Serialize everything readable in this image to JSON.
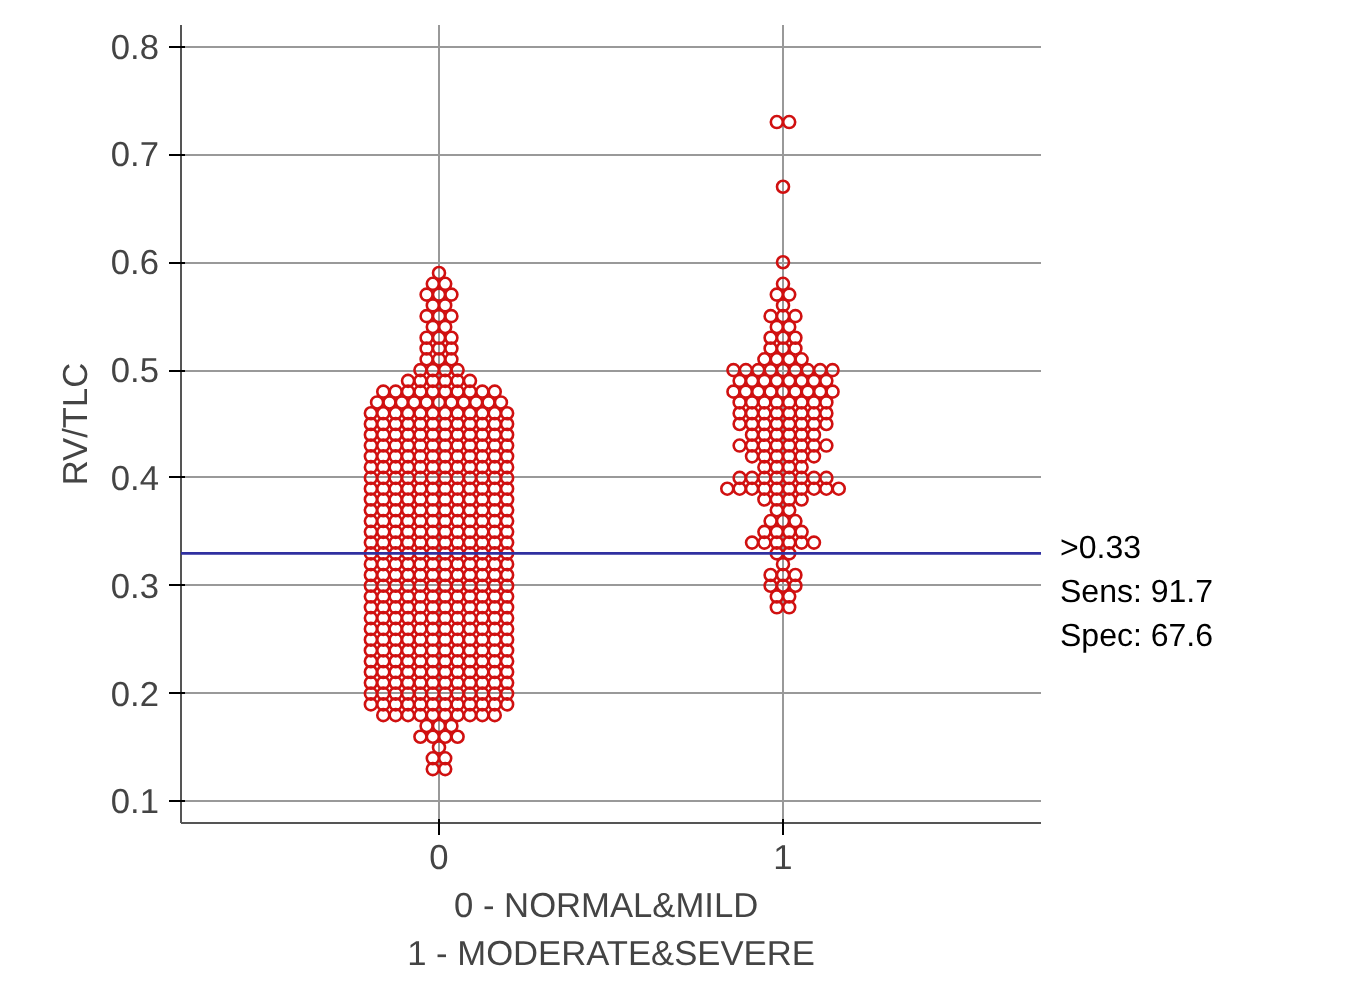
{
  "chart_data": {
    "type": "scatter",
    "xlabel": "0 -  NORMAL&MILD\n1 - MODERATE&SEVERE",
    "ylabel": "RV/TLC",
    "xlim": [
      -0.75,
      1.75
    ],
    "xticks": [
      0,
      1
    ],
    "ylim": [
      0.08,
      0.82
    ],
    "yticks": [
      0.1,
      0.2,
      0.3,
      0.4,
      0.5,
      0.6,
      0.7,
      0.8
    ],
    "grid": true,
    "marker": "circle",
    "series": [
      {
        "color": "#d01010",
        "x": [
          -0.018,
          0.018,
          -0.018,
          0.018,
          0,
          -0.054,
          -0.018,
          0.018,
          0.054,
          -0.036,
          0,
          0.036,
          -0.162,
          -0.126,
          -0.09,
          -0.054,
          -0.018,
          0.018,
          0.054,
          0.09,
          0.126,
          0.162,
          -0.198,
          -0.162,
          -0.126,
          -0.09,
          -0.054,
          -0.018,
          0.018,
          0.054,
          0.09,
          0.126,
          0.162,
          0.198,
          -0.198,
          -0.162,
          -0.126,
          -0.09,
          -0.054,
          -0.018,
          0.018,
          0.054,
          0.09,
          0.126,
          0.162,
          0.198,
          -0.198,
          -0.162,
          -0.126,
          -0.09,
          -0.054,
          -0.018,
          0.018,
          0.054,
          0.09,
          0.126,
          0.162,
          0.198,
          -0.198,
          -0.162,
          -0.126,
          -0.09,
          -0.054,
          -0.018,
          0.018,
          0.054,
          0.09,
          0.126,
          0.162,
          0.198,
          -0.198,
          -0.162,
          -0.126,
          -0.09,
          -0.054,
          -0.018,
          0.018,
          0.054,
          0.09,
          0.126,
          0.162,
          0.198,
          -0.198,
          -0.162,
          -0.126,
          -0.09,
          -0.054,
          -0.018,
          0.018,
          0.054,
          0.09,
          0.126,
          0.162,
          0.198,
          -0.198,
          -0.162,
          -0.126,
          -0.09,
          -0.054,
          -0.018,
          0.018,
          0.054,
          0.09,
          0.126,
          0.162,
          0.198,
          -0.198,
          -0.162,
          -0.126,
          -0.09,
          -0.054,
          -0.018,
          0.018,
          0.054,
          0.09,
          0.126,
          0.162,
          0.198,
          -0.198,
          -0.162,
          -0.126,
          -0.09,
          -0.054,
          -0.018,
          0.018,
          0.054,
          0.09,
          0.126,
          0.162,
          0.198,
          -0.198,
          -0.162,
          -0.126,
          -0.09,
          -0.054,
          -0.018,
          0.018,
          0.054,
          0.09,
          0.126,
          0.162,
          0.198,
          -0.198,
          -0.162,
          -0.126,
          -0.09,
          -0.054,
          -0.018,
          0.018,
          0.054,
          0.09,
          0.126,
          0.162,
          0.198,
          -0.198,
          -0.162,
          -0.126,
          -0.09,
          -0.054,
          -0.018,
          0.018,
          0.054,
          0.09,
          0.126,
          0.162,
          0.198,
          -0.198,
          -0.162,
          -0.126,
          -0.09,
          -0.054,
          -0.018,
          0.018,
          0.054,
          0.09,
          0.126,
          0.162,
          0.198,
          -0.198,
          -0.162,
          -0.126,
          -0.09,
          -0.054,
          -0.018,
          0.018,
          0.054,
          0.09,
          0.126,
          0.162,
          0.198,
          -0.198,
          -0.162,
          -0.126,
          -0.09,
          -0.054,
          -0.018,
          0.018,
          0.054,
          0.09,
          0.126,
          0.162,
          0.198,
          -0.198,
          -0.162,
          -0.126,
          -0.09,
          -0.054,
          -0.018,
          0.018,
          0.054,
          0.09,
          0.126,
          0.162,
          0.198,
          -0.198,
          -0.162,
          -0.126,
          -0.09,
          -0.054,
          -0.018,
          0.018,
          0.054,
          0.09,
          0.126,
          0.162,
          0.198,
          -0.198,
          -0.162,
          -0.126,
          -0.09,
          -0.054,
          -0.018,
          0.018,
          0.054,
          0.09,
          0.126,
          0.162,
          0.198,
          -0.198,
          -0.162,
          -0.126,
          -0.09,
          -0.054,
          -0.018,
          0.018,
          0.054,
          0.09,
          0.126,
          0.162,
          0.198,
          -0.198,
          -0.162,
          -0.126,
          -0.09,
          -0.054,
          -0.018,
          0.018,
          0.054,
          0.09,
          0.126,
          0.162,
          0.198,
          -0.198,
          -0.162,
          -0.126,
          -0.09,
          -0.054,
          -0.018,
          0.018,
          0.054,
          0.09,
          0.126,
          0.162,
          0.198,
          -0.198,
          -0.162,
          -0.126,
          -0.09,
          -0.054,
          -0.018,
          0.018,
          0.054,
          0.09,
          0.126,
          0.162,
          0.198,
          -0.198,
          -0.162,
          -0.126,
          -0.09,
          -0.054,
          -0.018,
          0.018,
          0.054,
          0.09,
          0.126,
          0.162,
          0.198,
          -0.198,
          -0.162,
          -0.126,
          -0.09,
          -0.054,
          -0.018,
          0.018,
          0.054,
          0.09,
          0.126,
          0.162,
          0.198,
          -0.198,
          -0.162,
          -0.126,
          -0.09,
          -0.054,
          -0.018,
          0.018,
          0.054,
          0.09,
          0.126,
          0.162,
          0.198,
          -0.198,
          -0.162,
          -0.126,
          -0.09,
          -0.054,
          -0.018,
          0.018,
          0.054,
          0.09,
          0.126,
          0.162,
          0.198,
          -0.198,
          -0.162,
          -0.126,
          -0.09,
          -0.054,
          -0.018,
          0.018,
          0.054,
          0.09,
          0.126,
          0.162,
          0.198,
          -0.198,
          -0.162,
          -0.126,
          -0.09,
          -0.054,
          -0.018,
          0.018,
          0.054,
          0.09,
          0.126,
          0.162,
          0.198,
          -0.18,
          -0.144,
          -0.108,
          -0.072,
          -0.036,
          0,
          0.036,
          0.072,
          0.108,
          0.144,
          0.18,
          -0.162,
          -0.126,
          -0.09,
          -0.054,
          -0.018,
          0.018,
          0.054,
          0.09,
          0.126,
          0.162,
          -0.09,
          -0.054,
          -0.018,
          0.018,
          0.054,
          0.09,
          -0.054,
          -0.018,
          0.018,
          0.054,
          -0.036,
          0,
          0.036,
          -0.036,
          0,
          0.036,
          -0.036,
          0,
          0.036,
          -0.018,
          0.018,
          -0.036,
          0,
          0.036,
          -0.018,
          0.018,
          -0.036,
          0,
          0.036,
          -0.018,
          0.018,
          0
        ],
        "values": [
          0.13,
          0.13,
          0.14,
          0.14,
          0.15,
          0.16,
          0.16,
          0.16,
          0.16,
          0.17,
          0.17,
          0.17,
          0.18,
          0.18,
          0.18,
          0.18,
          0.18,
          0.18,
          0.18,
          0.18,
          0.18,
          0.18,
          0.19,
          0.19,
          0.19,
          0.19,
          0.19,
          0.19,
          0.19,
          0.19,
          0.19,
          0.19,
          0.19,
          0.19,
          0.2,
          0.2,
          0.2,
          0.2,
          0.2,
          0.2,
          0.2,
          0.2,
          0.2,
          0.2,
          0.2,
          0.2,
          0.21,
          0.21,
          0.21,
          0.21,
          0.21,
          0.21,
          0.21,
          0.21,
          0.21,
          0.21,
          0.21,
          0.21,
          0.22,
          0.22,
          0.22,
          0.22,
          0.22,
          0.22,
          0.22,
          0.22,
          0.22,
          0.22,
          0.22,
          0.22,
          0.23,
          0.23,
          0.23,
          0.23,
          0.23,
          0.23,
          0.23,
          0.23,
          0.23,
          0.23,
          0.23,
          0.23,
          0.24,
          0.24,
          0.24,
          0.24,
          0.24,
          0.24,
          0.24,
          0.24,
          0.24,
          0.24,
          0.24,
          0.24,
          0.25,
          0.25,
          0.25,
          0.25,
          0.25,
          0.25,
          0.25,
          0.25,
          0.25,
          0.25,
          0.25,
          0.25,
          0.26,
          0.26,
          0.26,
          0.26,
          0.26,
          0.26,
          0.26,
          0.26,
          0.26,
          0.26,
          0.26,
          0.26,
          0.27,
          0.27,
          0.27,
          0.27,
          0.27,
          0.27,
          0.27,
          0.27,
          0.27,
          0.27,
          0.27,
          0.27,
          0.28,
          0.28,
          0.28,
          0.28,
          0.28,
          0.28,
          0.28,
          0.28,
          0.28,
          0.28,
          0.28,
          0.28,
          0.29,
          0.29,
          0.29,
          0.29,
          0.29,
          0.29,
          0.29,
          0.29,
          0.29,
          0.29,
          0.29,
          0.29,
          0.3,
          0.3,
          0.3,
          0.3,
          0.3,
          0.3,
          0.3,
          0.3,
          0.3,
          0.3,
          0.3,
          0.3,
          0.31,
          0.31,
          0.31,
          0.31,
          0.31,
          0.31,
          0.31,
          0.31,
          0.31,
          0.31,
          0.31,
          0.31,
          0.32,
          0.32,
          0.32,
          0.32,
          0.32,
          0.32,
          0.32,
          0.32,
          0.32,
          0.32,
          0.32,
          0.32,
          0.33,
          0.33,
          0.33,
          0.33,
          0.33,
          0.33,
          0.33,
          0.33,
          0.33,
          0.33,
          0.33,
          0.33,
          0.34,
          0.34,
          0.34,
          0.34,
          0.34,
          0.34,
          0.34,
          0.34,
          0.34,
          0.34,
          0.34,
          0.34,
          0.35,
          0.35,
          0.35,
          0.35,
          0.35,
          0.35,
          0.35,
          0.35,
          0.35,
          0.35,
          0.35,
          0.35,
          0.36,
          0.36,
          0.36,
          0.36,
          0.36,
          0.36,
          0.36,
          0.36,
          0.36,
          0.36,
          0.36,
          0.36,
          0.37,
          0.37,
          0.37,
          0.37,
          0.37,
          0.37,
          0.37,
          0.37,
          0.37,
          0.37,
          0.37,
          0.37,
          0.38,
          0.38,
          0.38,
          0.38,
          0.38,
          0.38,
          0.38,
          0.38,
          0.38,
          0.38,
          0.38,
          0.38,
          0.39,
          0.39,
          0.39,
          0.39,
          0.39,
          0.39,
          0.39,
          0.39,
          0.39,
          0.39,
          0.39,
          0.39,
          0.4,
          0.4,
          0.4,
          0.4,
          0.4,
          0.4,
          0.4,
          0.4,
          0.4,
          0.4,
          0.4,
          0.4,
          0.41,
          0.41,
          0.41,
          0.41,
          0.41,
          0.41,
          0.41,
          0.41,
          0.41,
          0.41,
          0.41,
          0.41,
          0.42,
          0.42,
          0.42,
          0.42,
          0.42,
          0.42,
          0.42,
          0.42,
          0.42,
          0.42,
          0.42,
          0.42,
          0.43,
          0.43,
          0.43,
          0.43,
          0.43,
          0.43,
          0.43,
          0.43,
          0.43,
          0.43,
          0.43,
          0.43,
          0.44,
          0.44,
          0.44,
          0.44,
          0.44,
          0.44,
          0.44,
          0.44,
          0.44,
          0.44,
          0.44,
          0.44,
          0.45,
          0.45,
          0.45,
          0.45,
          0.45,
          0.45,
          0.45,
          0.45,
          0.45,
          0.45,
          0.45,
          0.45,
          0.46,
          0.46,
          0.46,
          0.46,
          0.46,
          0.46,
          0.46,
          0.46,
          0.46,
          0.46,
          0.46,
          0.46,
          0.47,
          0.47,
          0.47,
          0.47,
          0.47,
          0.47,
          0.47,
          0.47,
          0.47,
          0.47,
          0.47,
          0.48,
          0.48,
          0.48,
          0.48,
          0.48,
          0.48,
          0.48,
          0.48,
          0.48,
          0.48,
          0.49,
          0.49,
          0.49,
          0.49,
          0.49,
          0.49,
          0.5,
          0.5,
          0.5,
          0.5,
          0.51,
          0.51,
          0.51,
          0.52,
          0.52,
          0.52,
          0.53,
          0.53,
          0.53,
          0.54,
          0.54,
          0.55,
          0.55,
          0.55,
          0.56,
          0.56,
          0.57,
          0.57,
          0.57,
          0.58,
          0.58,
          0.59
        ]
      },
      {
        "color": "#d01010",
        "x": [
          0.982,
          1.018,
          0.982,
          1.018,
          0.964,
          1,
          1.036,
          0.964,
          1,
          1.036,
          1,
          0.982,
          1.018,
          0.91,
          0.946,
          0.982,
          1.018,
          1.054,
          1.09,
          0.946,
          0.982,
          1.018,
          1.054,
          0.964,
          1,
          1.036,
          0.982,
          1.018,
          0.946,
          0.982,
          1.018,
          1.054,
          0.838,
          0.874,
          0.91,
          0.946,
          0.982,
          1.018,
          1.054,
          1.09,
          1.126,
          1.162,
          0.874,
          0.91,
          0.946,
          0.982,
          1.018,
          1.054,
          1.09,
          1.126,
          0.946,
          0.982,
          1.018,
          1.054,
          0.91,
          0.946,
          0.982,
          1.018,
          1.054,
          1.09,
          0.874,
          0.91,
          0.946,
          0.982,
          1.018,
          1.054,
          1.09,
          1.126,
          0.91,
          0.946,
          0.982,
          1.018,
          1.054,
          1.09,
          0.874,
          0.91,
          0.946,
          0.982,
          1.018,
          1.054,
          1.09,
          1.126,
          0.874,
          0.91,
          0.946,
          0.982,
          1.018,
          1.054,
          1.09,
          1.126,
          0.874,
          0.91,
          0.946,
          0.982,
          1.018,
          1.054,
          1.09,
          1.126,
          0.856,
          0.892,
          0.928,
          0.964,
          1,
          1.036,
          1.072,
          1.108,
          1.144,
          0.874,
          0.91,
          0.946,
          0.982,
          1.018,
          1.054,
          1.09,
          1.126,
          0.856,
          0.892,
          0.928,
          0.964,
          1,
          1.036,
          1.072,
          1.108,
          1.144,
          0.946,
          0.982,
          1.018,
          1.054,
          0.964,
          1,
          1.036,
          0.964,
          1,
          1.036,
          0.982,
          1.018,
          0.964,
          1,
          1.036,
          1,
          0.982,
          1.018,
          1,
          1,
          1,
          0.982,
          1.018
        ],
        "values": [
          0.28,
          0.28,
          0.29,
          0.29,
          0.3,
          0.3,
          0.3,
          0.31,
          0.31,
          0.31,
          0.32,
          0.33,
          0.33,
          0.34,
          0.34,
          0.34,
          0.34,
          0.34,
          0.34,
          0.35,
          0.35,
          0.35,
          0.35,
          0.36,
          0.36,
          0.36,
          0.37,
          0.37,
          0.38,
          0.38,
          0.38,
          0.38,
          0.39,
          0.39,
          0.39,
          0.39,
          0.39,
          0.39,
          0.39,
          0.39,
          0.39,
          0.39,
          0.4,
          0.4,
          0.4,
          0.4,
          0.4,
          0.4,
          0.4,
          0.4,
          0.41,
          0.41,
          0.41,
          0.41,
          0.42,
          0.42,
          0.42,
          0.42,
          0.42,
          0.42,
          0.43,
          0.43,
          0.43,
          0.43,
          0.43,
          0.43,
          0.43,
          0.43,
          0.44,
          0.44,
          0.44,
          0.44,
          0.44,
          0.44,
          0.45,
          0.45,
          0.45,
          0.45,
          0.45,
          0.45,
          0.45,
          0.45,
          0.46,
          0.46,
          0.46,
          0.46,
          0.46,
          0.46,
          0.46,
          0.46,
          0.47,
          0.47,
          0.47,
          0.47,
          0.47,
          0.47,
          0.47,
          0.47,
          0.48,
          0.48,
          0.48,
          0.48,
          0.48,
          0.48,
          0.48,
          0.48,
          0.48,
          0.49,
          0.49,
          0.49,
          0.49,
          0.49,
          0.49,
          0.49,
          0.49,
          0.5,
          0.5,
          0.5,
          0.5,
          0.5,
          0.5,
          0.5,
          0.5,
          0.5,
          0.51,
          0.51,
          0.51,
          0.51,
          0.52,
          0.52,
          0.52,
          0.53,
          0.53,
          0.53,
          0.54,
          0.54,
          0.55,
          0.55,
          0.55,
          0.56,
          0.57,
          0.57,
          0.58,
          0.6,
          0.67,
          0.73,
          0.73
        ]
      }
    ],
    "ref_lines": [
      {
        "axis": "y",
        "value": 0.33,
        "label": ">0.33",
        "color": "#3030a0"
      }
    ],
    "annotations": [
      "Sens: 91.7",
      "Spec: 67.6"
    ]
  }
}
